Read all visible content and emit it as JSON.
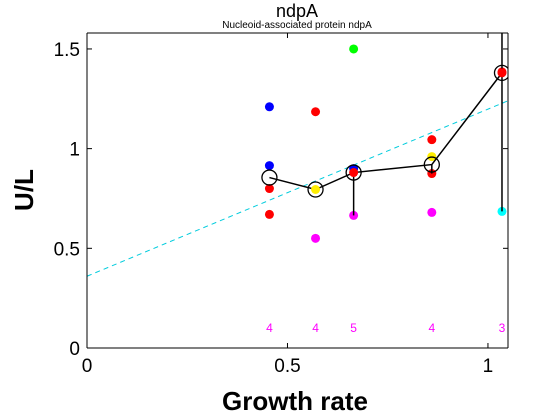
{
  "chart_data": {
    "type": "scatter",
    "title": "ndpA",
    "subtitle": "Nucleoid-associated protein ndpA",
    "xlabel": "Growth rate",
    "ylabel": "U/L",
    "xlim": [
      0,
      1.05
    ],
    "ylim": [
      0,
      1.58
    ],
    "xticks": [
      0,
      0.5,
      1
    ],
    "xtick_labels": [
      "0",
      "0.5",
      "1"
    ],
    "yticks": [
      0,
      0.5,
      1,
      1.5
    ],
    "ytick_labels": [
      "0",
      "0.5",
      "1",
      "1.5"
    ],
    "grid": false,
    "fit_line": {
      "color": "#00ccdd",
      "style": "dashed",
      "x": [
        0,
        1.05
      ],
      "y": [
        0.36,
        1.24
      ]
    },
    "points": [
      {
        "x": 0.455,
        "y": 1.21,
        "color": "#0000ff"
      },
      {
        "x": 0.455,
        "y": 0.915,
        "color": "#0000ff"
      },
      {
        "x": 0.455,
        "y": 0.8,
        "color": "#ff0000"
      },
      {
        "x": 0.455,
        "y": 0.67,
        "color": "#ff0000"
      },
      {
        "x": 0.57,
        "y": 1.185,
        "color": "#ff0000"
      },
      {
        "x": 0.57,
        "y": 0.55,
        "color": "#ff00ff"
      },
      {
        "x": 0.665,
        "y": 1.5,
        "color": "#00ff00"
      },
      {
        "x": 0.665,
        "y": 0.9,
        "color": "#0000ff"
      },
      {
        "x": 0.665,
        "y": 0.665,
        "color": "#ff00ff"
      },
      {
        "x": 0.86,
        "y": 1.045,
        "color": "#ff0000"
      },
      {
        "x": 0.86,
        "y": 0.96,
        "color": "#ffee00"
      },
      {
        "x": 0.86,
        "y": 0.875,
        "color": "#ff0000"
      },
      {
        "x": 0.86,
        "y": 0.68,
        "color": "#ff00ff"
      },
      {
        "x": 1.035,
        "y": 1.385,
        "color": "#ff0000"
      },
      {
        "x": 1.035,
        "y": 0.685,
        "color": "#00ffff"
      }
    ],
    "mean_series": {
      "color": "#000000",
      "x": [
        0.455,
        0.57,
        0.665,
        0.86,
        1.035
      ],
      "y": [
        0.855,
        0.795,
        0.88,
        0.92,
        1.38
      ],
      "fill": [
        null,
        "#ffee00",
        "#ff0000",
        null,
        "#ff0000"
      ],
      "error_low": [
        0.855,
        0.795,
        0.665,
        0.875,
        0.685
      ],
      "error_high": [
        0.855,
        0.795,
        0.88,
        0.92,
        1.58
      ]
    },
    "counts": {
      "color": "#ff00ff",
      "y": 0.1,
      "x": [
        0.455,
        0.57,
        0.665,
        0.86,
        1.035
      ],
      "labels": [
        "4",
        "4",
        "5",
        "4",
        "3"
      ]
    }
  }
}
